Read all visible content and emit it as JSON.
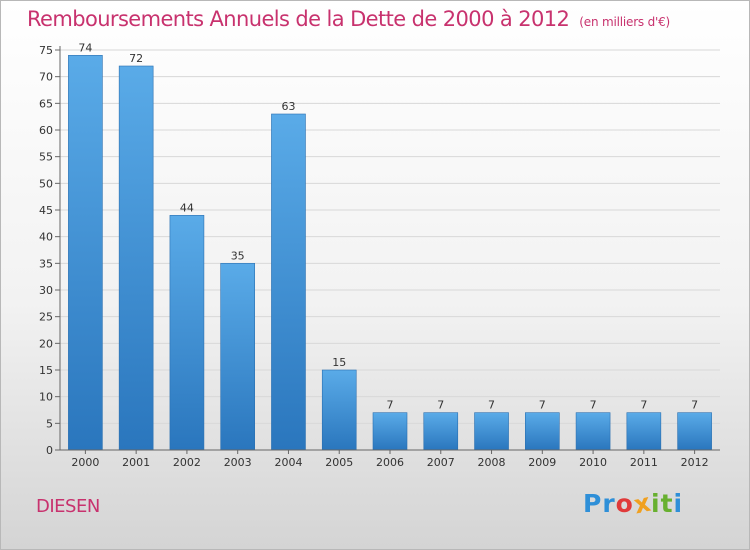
{
  "chart_data": {
    "type": "bar",
    "title": "Remboursements Annuels de la Dette de 2000 à 2012",
    "subtitle": "(en milliers d'€)",
    "xlabel": "",
    "ylabel": "",
    "categories": [
      "2000",
      "2001",
      "2002",
      "2003",
      "2004",
      "2005",
      "2006",
      "2007",
      "2008",
      "2009",
      "2010",
      "2011",
      "2012"
    ],
    "values": [
      74,
      72,
      44,
      35,
      63,
      15,
      7,
      7,
      7,
      7,
      7,
      7,
      7
    ],
    "ylim": [
      0,
      75
    ],
    "yticks": [
      0,
      5,
      10,
      15,
      20,
      25,
      30,
      35,
      40,
      45,
      50,
      55,
      60,
      65,
      70,
      75
    ],
    "grid": true,
    "legend": "none",
    "bar_color": "#3d8fd6",
    "bar_color_light": "#5aabe8",
    "bar_color_dark": "#2a76bd"
  },
  "footer": {
    "commune": "DIESEN",
    "logo_letters": [
      {
        "ch": "P",
        "color": "#2e8fd8"
      },
      {
        "ch": "r",
        "color": "#2e8fd8"
      },
      {
        "ch": "o",
        "color": "#e03a3a"
      },
      {
        "ch": "x",
        "color": "#f0a020"
      },
      {
        "ch": "i",
        "color": "#68b030"
      },
      {
        "ch": "t",
        "color": "#68b030"
      },
      {
        "ch": "i",
        "color": "#2e8fd8"
      }
    ]
  }
}
